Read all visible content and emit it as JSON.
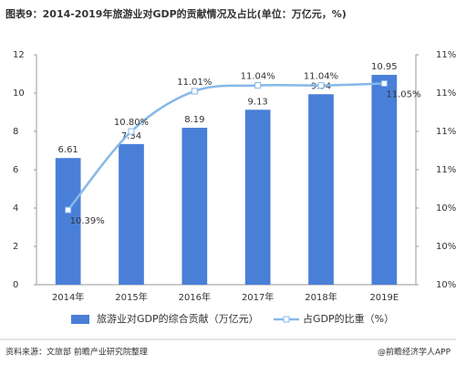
{
  "chart_data": {
    "type": "bar",
    "title": "图表9：2014-2019年旅游业对GDP的贡献情况及占比(单位：万亿元，%)",
    "categories": [
      "2014年",
      "2015年",
      "2016年",
      "2017年",
      "2018年",
      "2019E"
    ],
    "series": [
      {
        "name": "旅游业对GDP的综合贡献（万亿元）",
        "type": "bar",
        "color": "#4a7fd8",
        "values": [
          6.61,
          7.34,
          8.19,
          9.13,
          9.94,
          10.95
        ]
      },
      {
        "name": "占GDP的比重（%）",
        "type": "line",
        "axis": "y2",
        "color": "#86b8e8",
        "values": [
          10.39,
          10.8,
          11.01,
          11.04,
          11.04,
          11.05
        ],
        "value_labels": [
          "10.39%",
          "10.80%",
          "11.01%",
          "11.04%",
          "11.04%",
          "11.05%"
        ]
      }
    ],
    "ylim": [
      0,
      12
    ],
    "yticks": [
      0,
      2,
      4,
      6,
      8,
      10,
      12
    ],
    "y2lim": [
      10.0,
      11.2
    ],
    "y2ticks": [
      {
        "value": 10.0,
        "label": "10%"
      },
      {
        "value": 10.2,
        "label": "10%"
      },
      {
        "value": 10.4,
        "label": "10%"
      },
      {
        "value": 10.6,
        "label": "11%"
      },
      {
        "value": 10.8,
        "label": "11%"
      },
      {
        "value": 11.0,
        "label": "11%"
      },
      {
        "value": 11.2,
        "label": "11%"
      }
    ],
    "grid": false,
    "source": "资料来源：文旅部 前瞻产业研究院整理",
    "credit": "@前瞻经济学人APP"
  }
}
